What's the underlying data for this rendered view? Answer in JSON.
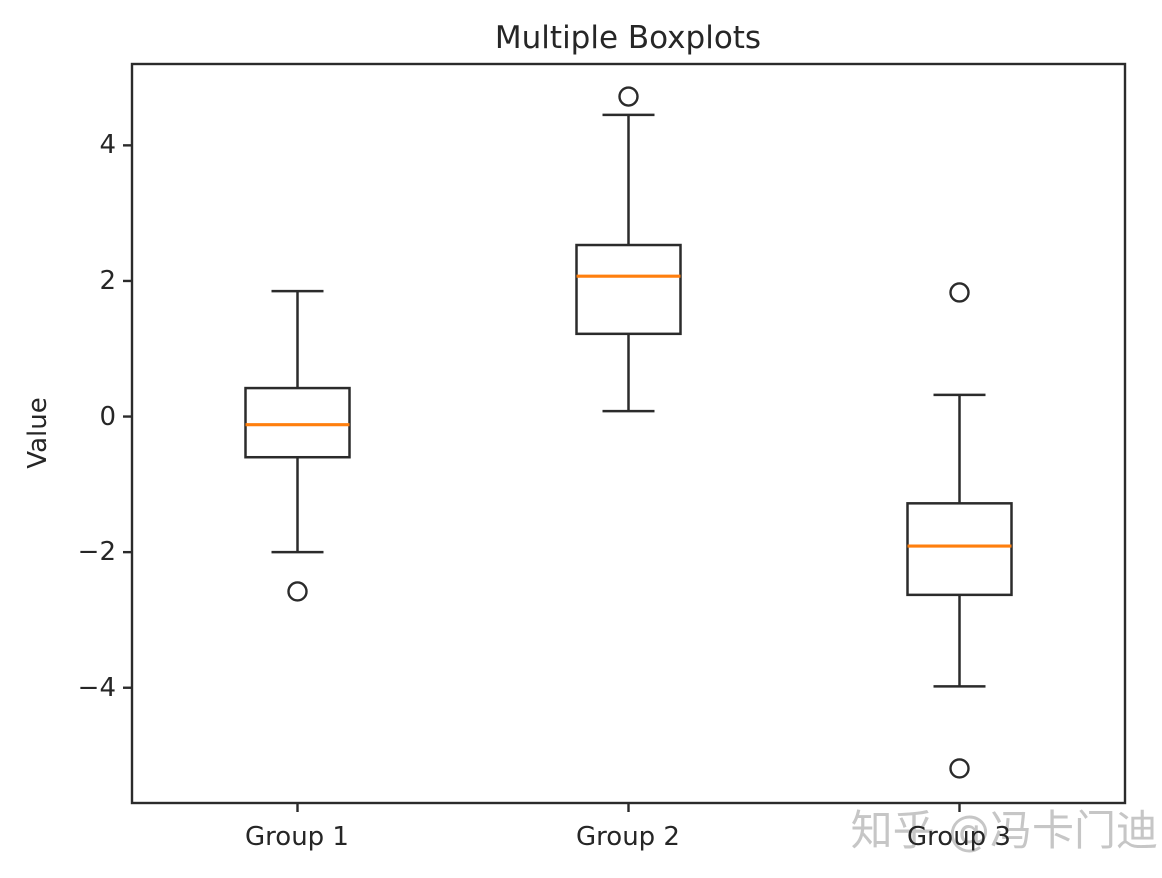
{
  "chart_data": {
    "type": "boxplot",
    "title": "Multiple Boxplots",
    "xlabel": "",
    "ylabel": "Value",
    "categories": [
      "Group 1",
      "Group 2",
      "Group 3"
    ],
    "ylim": [
      -5.7,
      5.2
    ],
    "yticks": [
      4,
      2,
      0,
      -2,
      -4
    ],
    "ytick_labels": [
      "4",
      "2",
      "0",
      "−2",
      "−4"
    ],
    "grid": false,
    "legend": "none",
    "series": [
      {
        "name": "Group 1",
        "whisker_low": -2.0,
        "q1": -0.6,
        "median": -0.12,
        "q3": 0.42,
        "whisker_high": 1.85,
        "outliers": [
          -2.58
        ]
      },
      {
        "name": "Group 2",
        "whisker_low": 0.08,
        "q1": 1.22,
        "median": 2.07,
        "q3": 2.53,
        "whisker_high": 4.45,
        "outliers": [
          4.72
        ]
      },
      {
        "name": "Group 3",
        "whisker_low": -3.98,
        "q1": -2.63,
        "median": -1.91,
        "q3": -1.28,
        "whisker_high": 0.32,
        "outliers": [
          1.83,
          -5.19
        ]
      }
    ],
    "colors": {
      "box_stroke": "#2b2b2b",
      "median": "#ff7f0e",
      "outlier_stroke": "#2b2b2b",
      "frame": "#2b2b2b",
      "background": "#ffffff"
    }
  },
  "watermark": {
    "text": "知乎 @冯卡门迪",
    "color": "#c3c3c3"
  }
}
